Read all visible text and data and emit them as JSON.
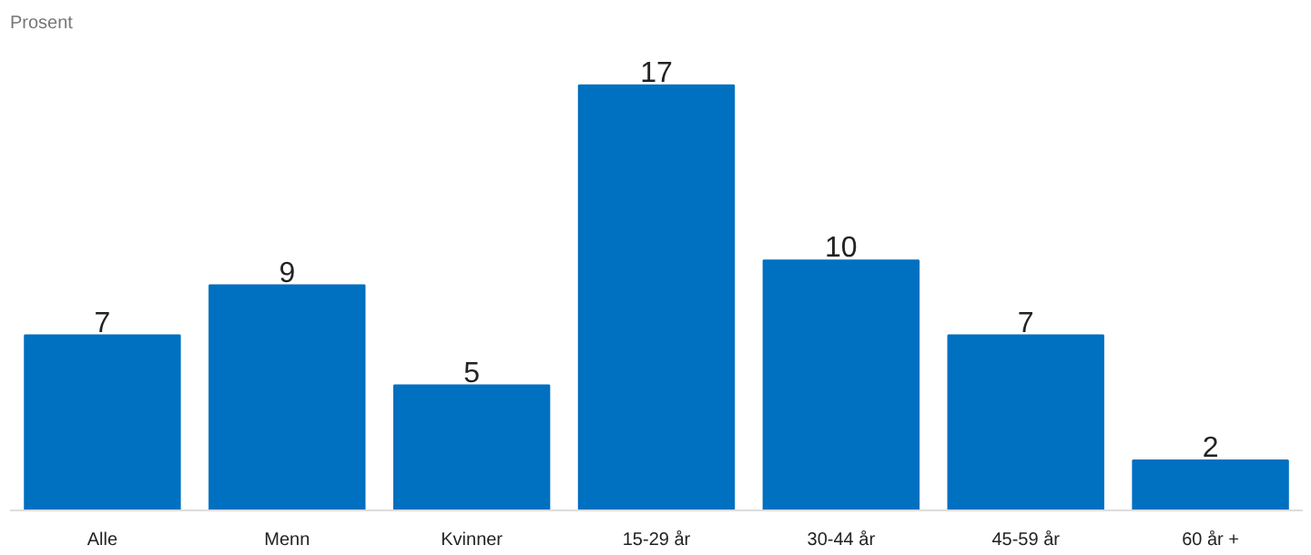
{
  "chart_data": {
    "type": "bar",
    "ylabel": "Prosent",
    "categories": [
      "Alle",
      "Menn",
      "Kvinner",
      "15-29 år",
      "30-44 år",
      "45-59 år",
      "60 år +"
    ],
    "values": [
      7,
      9,
      5,
      17,
      10,
      7,
      2
    ],
    "color": "#0070c0",
    "data_labels": true,
    "grid": false
  }
}
